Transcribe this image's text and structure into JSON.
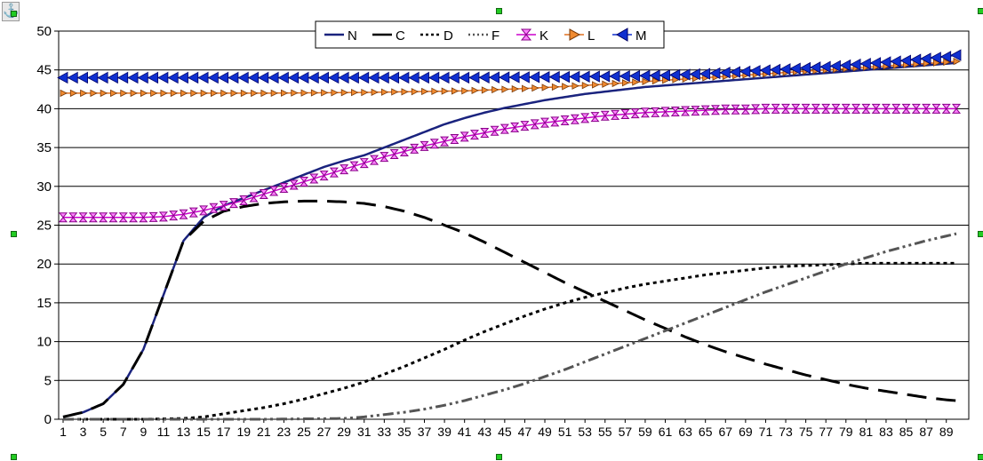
{
  "chart_data": {
    "type": "line",
    "title": "",
    "xlabel": "",
    "ylabel": "",
    "ylim": [
      0,
      50
    ],
    "y_ticks": [
      0,
      5,
      10,
      15,
      20,
      25,
      30,
      35,
      40,
      45,
      50
    ],
    "x_range": [
      1,
      90
    ],
    "x_tick_labels": [
      "1",
      "3",
      "5",
      "7",
      "9",
      "11",
      "13",
      "15",
      "17",
      "19",
      "21",
      "23",
      "25",
      "27",
      "29",
      "31",
      "33",
      "35",
      "37",
      "39",
      "41",
      "43",
      "45",
      "47",
      "49",
      "51",
      "53",
      "55",
      "57",
      "59",
      "61",
      "63",
      "65",
      "67",
      "69",
      "71",
      "73",
      "75",
      "77",
      "79",
      "81",
      "83",
      "85",
      "87",
      "89"
    ],
    "grid": "horizontal",
    "legend_position": "top-center",
    "series": [
      {
        "name": "N",
        "color": "#1a237e",
        "style": "solid",
        "points": [
          [
            1,
            0.3
          ],
          [
            3,
            0.9
          ],
          [
            5,
            2
          ],
          [
            7,
            4.5
          ],
          [
            9,
            9
          ],
          [
            11,
            16
          ],
          [
            13,
            23
          ],
          [
            15,
            26
          ],
          [
            17,
            27.5
          ],
          [
            19,
            28.5
          ],
          [
            21,
            29.5
          ],
          [
            23,
            30.5
          ],
          [
            25,
            31.5
          ],
          [
            27,
            32.5
          ],
          [
            29,
            33.3
          ],
          [
            31,
            34
          ],
          [
            33,
            35
          ],
          [
            35,
            36
          ],
          [
            37,
            37
          ],
          [
            39,
            38
          ],
          [
            41,
            38.8
          ],
          [
            43,
            39.5
          ],
          [
            45,
            40.1
          ],
          [
            47,
            40.6
          ],
          [
            49,
            41.1
          ],
          [
            51,
            41.5
          ],
          [
            53,
            41.9
          ],
          [
            55,
            42.2
          ],
          [
            57,
            42.5
          ],
          [
            59,
            42.8
          ],
          [
            61,
            43
          ],
          [
            63,
            43.2
          ],
          [
            65,
            43.4
          ],
          [
            67,
            43.6
          ],
          [
            69,
            43.8
          ],
          [
            71,
            44
          ],
          [
            73,
            44.2
          ],
          [
            75,
            44.4
          ],
          [
            77,
            44.6
          ],
          [
            79,
            44.8
          ],
          [
            81,
            45
          ],
          [
            83,
            45.2
          ],
          [
            85,
            45.4
          ],
          [
            87,
            45.6
          ],
          [
            89,
            45.8
          ],
          [
            90,
            45.9
          ]
        ]
      },
      {
        "name": "C",
        "color": "#000000",
        "style": "longdash",
        "points": [
          [
            1,
            0.3
          ],
          [
            3,
            0.9
          ],
          [
            5,
            2
          ],
          [
            7,
            4.5
          ],
          [
            9,
            9
          ],
          [
            11,
            16
          ],
          [
            13,
            23
          ],
          [
            15,
            25.5
          ],
          [
            17,
            26.8
          ],
          [
            19,
            27.4
          ],
          [
            21,
            27.8
          ],
          [
            23,
            28
          ],
          [
            25,
            28.1
          ],
          [
            27,
            28.1
          ],
          [
            29,
            28
          ],
          [
            31,
            27.8
          ],
          [
            33,
            27.4
          ],
          [
            35,
            26.8
          ],
          [
            37,
            26
          ],
          [
            39,
            25
          ],
          [
            41,
            24
          ],
          [
            43,
            22.8
          ],
          [
            45,
            21.5
          ],
          [
            47,
            20.2
          ],
          [
            49,
            18.9
          ],
          [
            51,
            17.6
          ],
          [
            53,
            16.4
          ],
          [
            55,
            15.2
          ],
          [
            57,
            14
          ],
          [
            59,
            12.8
          ],
          [
            61,
            11.7
          ],
          [
            63,
            10.6
          ],
          [
            65,
            9.6
          ],
          [
            67,
            8.7
          ],
          [
            69,
            7.9
          ],
          [
            71,
            7.1
          ],
          [
            73,
            6.4
          ],
          [
            75,
            5.7
          ],
          [
            77,
            5.1
          ],
          [
            79,
            4.5
          ],
          [
            81,
            4
          ],
          [
            83,
            3.6
          ],
          [
            85,
            3.2
          ],
          [
            87,
            2.8
          ],
          [
            89,
            2.5
          ],
          [
            90,
            2.4
          ]
        ]
      },
      {
        "name": "D",
        "color": "#000000",
        "style": "dotted",
        "points": [
          [
            1,
            0
          ],
          [
            5,
            0
          ],
          [
            9,
            0
          ],
          [
            13,
            0.1
          ],
          [
            15,
            0.3
          ],
          [
            17,
            0.7
          ],
          [
            19,
            1.1
          ],
          [
            21,
            1.5
          ],
          [
            23,
            2
          ],
          [
            25,
            2.6
          ],
          [
            27,
            3.3
          ],
          [
            29,
            4
          ],
          [
            31,
            4.8
          ],
          [
            33,
            5.8
          ],
          [
            35,
            6.8
          ],
          [
            37,
            7.9
          ],
          [
            39,
            9
          ],
          [
            41,
            10.2
          ],
          [
            43,
            11.3
          ],
          [
            45,
            12.3
          ],
          [
            47,
            13.3
          ],
          [
            49,
            14.2
          ],
          [
            51,
            15
          ],
          [
            53,
            15.7
          ],
          [
            55,
            16.3
          ],
          [
            57,
            16.9
          ],
          [
            59,
            17.4
          ],
          [
            61,
            17.8
          ],
          [
            63,
            18.2
          ],
          [
            65,
            18.6
          ],
          [
            67,
            18.9
          ],
          [
            69,
            19.2
          ],
          [
            71,
            19.5
          ],
          [
            73,
            19.7
          ],
          [
            75,
            19.8
          ],
          [
            77,
            19.9
          ],
          [
            79,
            20
          ],
          [
            81,
            20.1
          ],
          [
            83,
            20.1
          ],
          [
            85,
            20.1
          ],
          [
            87,
            20.1
          ],
          [
            89,
            20.1
          ],
          [
            90,
            20.1
          ]
        ]
      },
      {
        "name": "F",
        "color": "#555555",
        "style": "dashdotdot",
        "points": [
          [
            1,
            0
          ],
          [
            11,
            0
          ],
          [
            21,
            0
          ],
          [
            29,
            0.1
          ],
          [
            31,
            0.3
          ],
          [
            33,
            0.6
          ],
          [
            35,
            0.9
          ],
          [
            37,
            1.3
          ],
          [
            39,
            1.8
          ],
          [
            41,
            2.4
          ],
          [
            43,
            3.1
          ],
          [
            45,
            3.8
          ],
          [
            47,
            4.6
          ],
          [
            49,
            5.5
          ],
          [
            51,
            6.4
          ],
          [
            53,
            7.4
          ],
          [
            55,
            8.4
          ],
          [
            57,
            9.4
          ],
          [
            59,
            10.4
          ],
          [
            61,
            11.4
          ],
          [
            63,
            12.4
          ],
          [
            65,
            13.4
          ],
          [
            67,
            14.4
          ],
          [
            69,
            15.4
          ],
          [
            71,
            16.4
          ],
          [
            73,
            17.3
          ],
          [
            75,
            18.2
          ],
          [
            77,
            19.1
          ],
          [
            79,
            20
          ],
          [
            81,
            20.8
          ],
          [
            83,
            21.6
          ],
          [
            85,
            22.3
          ],
          [
            87,
            23
          ],
          [
            89,
            23.6
          ],
          [
            90,
            23.9
          ]
        ]
      },
      {
        "name": "K",
        "color": "#cc00cc",
        "style": "marker-hourglass",
        "points": [
          [
            1,
            26
          ],
          [
            3,
            26
          ],
          [
            5,
            26
          ],
          [
            7,
            26
          ],
          [
            9,
            26
          ],
          [
            11,
            26.1
          ],
          [
            13,
            26.4
          ],
          [
            15,
            26.9
          ],
          [
            17,
            27.5
          ],
          [
            19,
            28.2
          ],
          [
            21,
            29
          ],
          [
            23,
            29.8
          ],
          [
            25,
            30.6
          ],
          [
            27,
            31.4
          ],
          [
            29,
            32.2
          ],
          [
            31,
            33
          ],
          [
            33,
            33.8
          ],
          [
            35,
            34.5
          ],
          [
            37,
            35.2
          ],
          [
            39,
            35.8
          ],
          [
            41,
            36.4
          ],
          [
            43,
            36.9
          ],
          [
            45,
            37.4
          ],
          [
            47,
            37.8
          ],
          [
            49,
            38.2
          ],
          [
            51,
            38.5
          ],
          [
            53,
            38.8
          ],
          [
            55,
            39.1
          ],
          [
            57,
            39.3
          ],
          [
            59,
            39.5
          ],
          [
            61,
            39.6
          ],
          [
            63,
            39.7
          ],
          [
            65,
            39.8
          ],
          [
            67,
            39.9
          ],
          [
            69,
            39.9
          ],
          [
            71,
            40
          ],
          [
            73,
            40
          ],
          [
            75,
            40
          ],
          [
            77,
            40
          ],
          [
            79,
            40
          ],
          [
            81,
            40
          ],
          [
            83,
            40
          ],
          [
            85,
            40
          ],
          [
            87,
            40
          ],
          [
            89,
            40
          ],
          [
            90,
            40
          ]
        ]
      },
      {
        "name": "L",
        "color": "#e07020",
        "style": "marker-triangle-right",
        "points": [
          [
            1,
            42
          ],
          [
            11,
            42
          ],
          [
            21,
            42
          ],
          [
            31,
            42.1
          ],
          [
            41,
            42.3
          ],
          [
            47,
            42.6
          ],
          [
            53,
            43
          ],
          [
            59,
            43.5
          ],
          [
            65,
            44
          ],
          [
            71,
            44.5
          ],
          [
            77,
            45
          ],
          [
            83,
            45.5
          ],
          [
            89,
            46
          ],
          [
            90,
            46.1
          ]
        ]
      },
      {
        "name": "M",
        "color": "#1030d0",
        "style": "marker-triangle-left",
        "points": [
          [
            1,
            44
          ],
          [
            11,
            44
          ],
          [
            21,
            44
          ],
          [
            31,
            44
          ],
          [
            41,
            44
          ],
          [
            51,
            44.1
          ],
          [
            57,
            44.2
          ],
          [
            61,
            44.3
          ],
          [
            65,
            44.5
          ],
          [
            69,
            44.8
          ],
          [
            73,
            45.1
          ],
          [
            77,
            45.4
          ],
          [
            81,
            45.8
          ],
          [
            85,
            46.2
          ],
          [
            89,
            46.7
          ],
          [
            90,
            46.9
          ]
        ]
      }
    ]
  }
}
